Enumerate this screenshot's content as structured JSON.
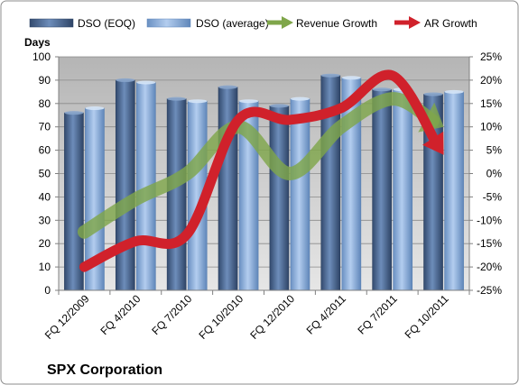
{
  "chart_data": {
    "type": "bar",
    "title": "SPX Corporation",
    "ylabel": "Days",
    "categories": [
      "FQ 12/2009",
      "FQ 4/2010",
      "FQ 7/2010",
      "FQ 10/2010",
      "FQ 12/2010",
      "FQ 4/2011",
      "FQ 7/2011",
      "FQ 10/2011"
    ],
    "ylim": [
      0,
      100
    ],
    "yticks": [
      "0",
      "10",
      "20",
      "30",
      "40",
      "50",
      "60",
      "70",
      "80",
      "90",
      "100"
    ],
    "y2lim": [
      -25,
      25
    ],
    "y2ticks": [
      "-25%",
      "-20%",
      "-15%",
      "-10%",
      "-5%",
      "0%",
      "5%",
      "10%",
      "15%",
      "20%",
      "25%"
    ],
    "series": [
      {
        "name": "DSO (EOQ)",
        "kind": "bar",
        "axis": "left",
        "color": "#4f6f9f",
        "values": [
          76,
          90,
          82,
          87,
          79,
          92,
          86,
          84
        ]
      },
      {
        "name": "DSO (average)",
        "kind": "bar",
        "axis": "left",
        "color": "#8eb4e3",
        "values": [
          78,
          89,
          81,
          81,
          82,
          91,
          86,
          85
        ]
      },
      {
        "name": "Revenue Growth",
        "kind": "line",
        "axis": "right",
        "unit": "%",
        "color": "#7fa64a",
        "values": [
          -12.5,
          -5.5,
          0,
          10,
          0,
          10,
          16,
          10
        ]
      },
      {
        "name": "AR Growth",
        "kind": "line",
        "axis": "right",
        "unit": "%",
        "color": "#d0212b",
        "values": [
          -20,
          -14.5,
          -13,
          11.5,
          11.5,
          14,
          21,
          4
        ]
      }
    ],
    "legend_position": "top",
    "grid": true,
    "plot_background": "#c0c0c0"
  }
}
